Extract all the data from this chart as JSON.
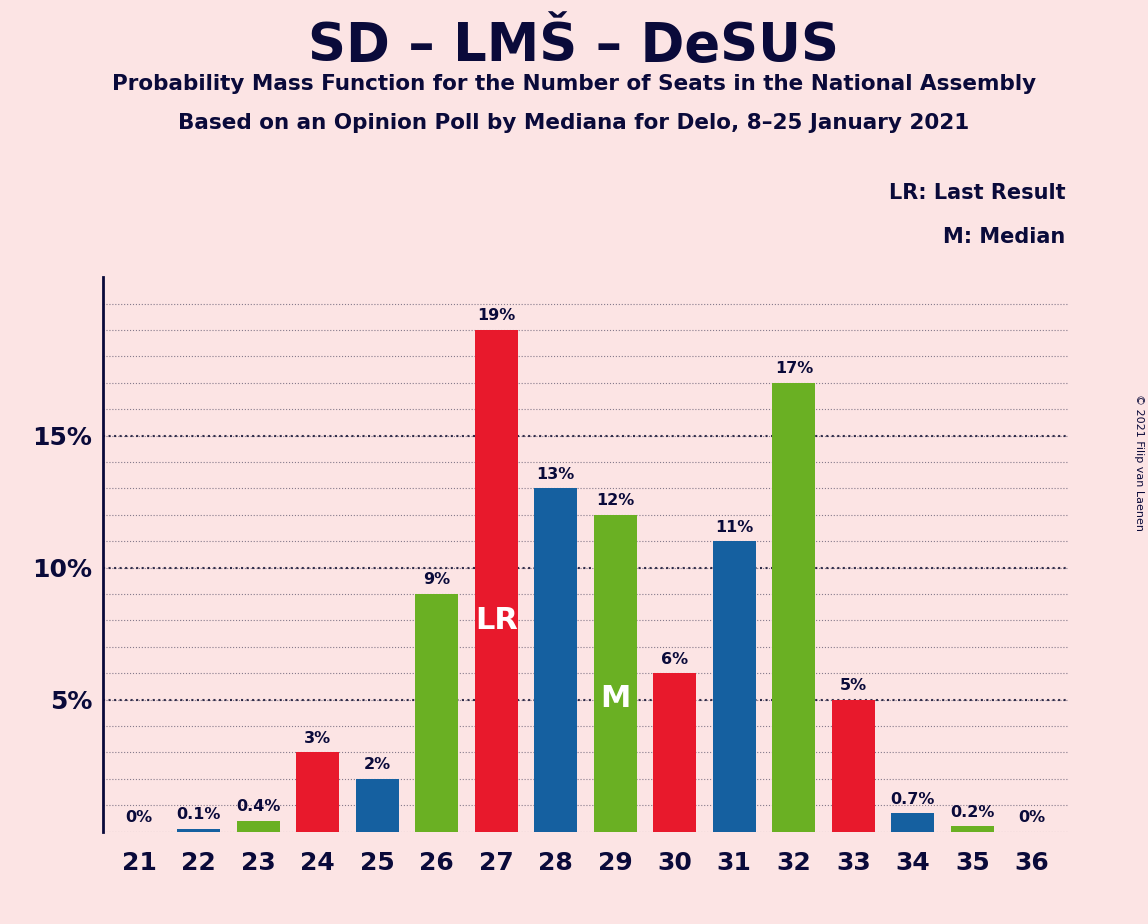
{
  "title": "SD – LMŠ – DeSUS",
  "subtitle1": "Probability Mass Function for the Number of Seats in the National Assembly",
  "subtitle2": "Based on an Opinion Poll by Mediana for Delo, 8–25 January 2021",
  "copyright": "© 2021 Filip van Laenen",
  "seats": [
    21,
    22,
    23,
    24,
    25,
    26,
    27,
    28,
    29,
    30,
    31,
    32,
    33,
    34,
    35,
    36
  ],
  "values": [
    0.0,
    0.1,
    0.4,
    3.0,
    2.0,
    9.0,
    19.0,
    13.0,
    12.0,
    6.0,
    11.0,
    17.0,
    5.0,
    0.7,
    0.2,
    0.0
  ],
  "colors": [
    "#e8192c",
    "#1560a0",
    "#6ab023",
    "#e8192c",
    "#1560a0",
    "#6ab023",
    "#e8192c",
    "#1560a0",
    "#6ab023",
    "#e8192c",
    "#1560a0",
    "#6ab023",
    "#e8192c",
    "#1560a0",
    "#6ab023",
    "#e8192c"
  ],
  "labels": [
    "0%",
    "0.1%",
    "0.4%",
    "3%",
    "2%",
    "9%",
    "19%",
    "13%",
    "12%",
    "6%",
    "11%",
    "17%",
    "5%",
    "0.7%",
    "0.2%",
    "0%"
  ],
  "sd_color": "#e8192c",
  "lms_color": "#1560a0",
  "desus_color": "#6ab023",
  "background_color": "#fce4e4",
  "lr_seat_idx": 6,
  "median_seat_idx": 8,
  "label_color": "#0a0a3a",
  "ylim_max": 21.0,
  "ytick_positions": [
    5.0,
    10.0,
    15.0
  ],
  "ytick_labels": [
    "5%",
    "10%",
    "15%"
  ],
  "grid_color": "#111133",
  "bar_width": 0.72
}
